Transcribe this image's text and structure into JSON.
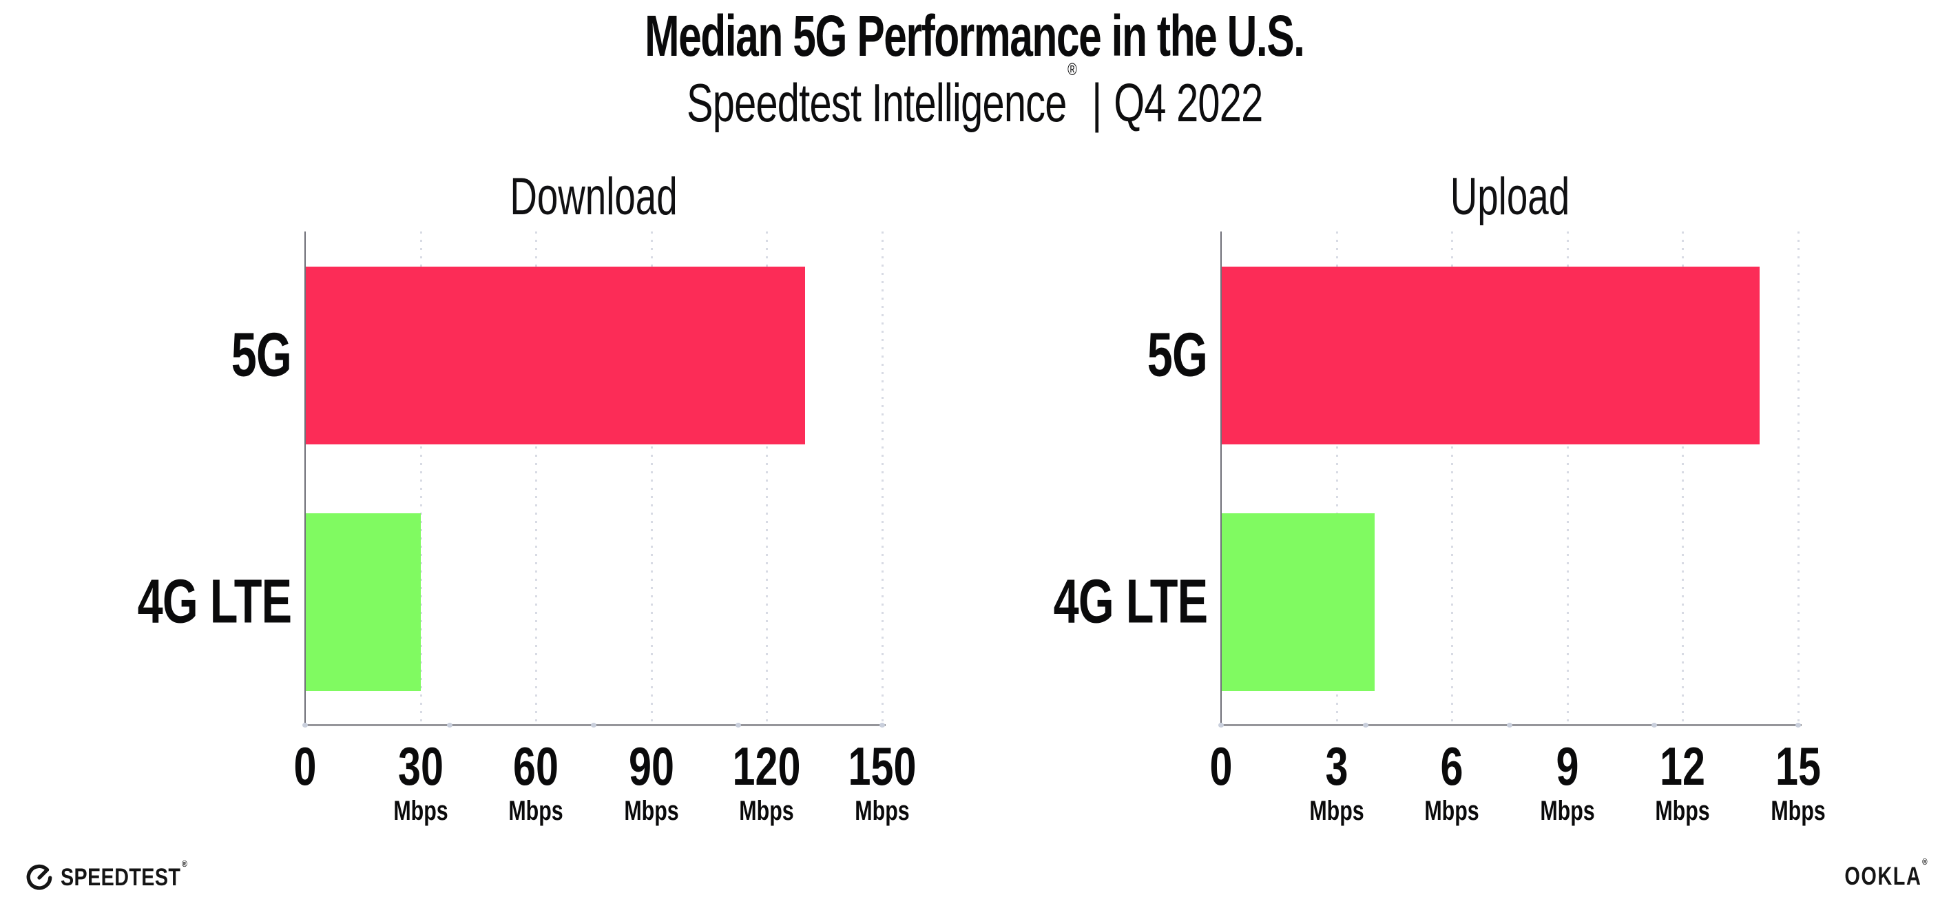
{
  "header": {
    "title": "Median 5G Performance in the U.S.",
    "subtitle_brand": "Speedtest Intelligence",
    "subtitle_reg": "®",
    "subtitle_sep": "|",
    "subtitle_period": "Q4 2022"
  },
  "chart_data": [
    {
      "type": "bar",
      "orientation": "horizontal",
      "title": "Download",
      "categories": [
        "5G",
        "4G LTE"
      ],
      "values": [
        130,
        30
      ],
      "unit": "Mbps",
      "xlabel": "",
      "ylabel": "",
      "xlim": [
        0,
        150
      ],
      "xticks": [
        0,
        30,
        60,
        90,
        120,
        150
      ],
      "bar_colors": [
        "#fc2c57",
        "#80fa61"
      ],
      "grid": "dotted vertical gridlines at each tick",
      "legend": "none"
    },
    {
      "type": "bar",
      "orientation": "horizontal",
      "title": "Upload",
      "categories": [
        "5G",
        "4G LTE"
      ],
      "values": [
        14,
        4
      ],
      "unit": "Mbps",
      "xlabel": "",
      "ylabel": "",
      "xlim": [
        0,
        15
      ],
      "xticks": [
        0,
        3,
        6,
        9,
        12,
        15
      ],
      "bar_colors": [
        "#fc2c57",
        "#80fa61"
      ],
      "grid": "dotted vertical gridlines at each tick",
      "legend": "none"
    }
  ],
  "footer": {
    "speedtest_label": "SPEEDTEST",
    "speedtest_mark": "®",
    "ookla_label": "OOKLA",
    "ookla_mark": "®"
  },
  "palette": {
    "bar_5g": "#fc2c57",
    "bar_4g_lte": "#80fa61",
    "axis_line": "#95959a",
    "grid_dots": "#d8dbe4",
    "text": "#0a0a0b"
  }
}
